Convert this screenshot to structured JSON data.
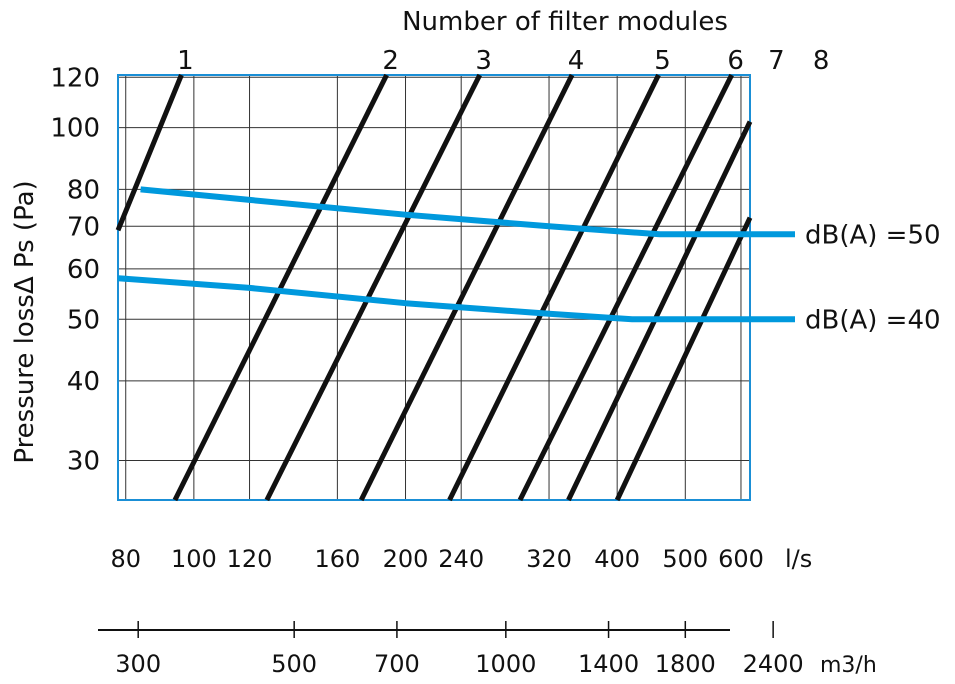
{
  "chart_data": {
    "type": "line",
    "title": "Number of filter modules",
    "ylabel": "Pressure lossΔ Ps (Pa)",
    "yscale": "log",
    "xscale": "log",
    "ylim": [
      26,
      121
    ],
    "xlim": [
      78,
      618
    ],
    "y_ticks": [
      30,
      40,
      50,
      60,
      70,
      80,
      100,
      120
    ],
    "x_ticks_ls": [
      80,
      100,
      120,
      160,
      200,
      240,
      320,
      400,
      500,
      600
    ],
    "x_unit_ls": "l/s",
    "x_ticks_m3h": [
      300,
      500,
      700,
      1000,
      1400,
      1800,
      2400
    ],
    "x_unit_m3h": "m3/h",
    "series": [
      {
        "name": "1",
        "points": [
          [
            78,
            69
          ],
          [
            96,
            121
          ]
        ]
      },
      {
        "name": "2",
        "points": [
          [
            94,
            26
          ],
          [
            188,
            121
          ]
        ]
      },
      {
        "name": "3",
        "points": [
          [
            127,
            26
          ],
          [
            255,
            121
          ]
        ]
      },
      {
        "name": "4",
        "points": [
          [
            173,
            26
          ],
          [
            345,
            121
          ]
        ]
      },
      {
        "name": "5",
        "points": [
          [
            231,
            26
          ],
          [
            458,
            121
          ]
        ]
      },
      {
        "name": "6",
        "points": [
          [
            291,
            26
          ],
          [
            582,
            121
          ]
        ]
      },
      {
        "name": "7",
        "points": [
          [
            341,
            26
          ],
          [
            665,
            121
          ]
        ]
      },
      {
        "name": "8",
        "points": [
          [
            400,
            26
          ],
          [
            770,
            121
          ]
        ]
      }
    ],
    "noise_curves": [
      {
        "name": "dB(A) =50",
        "color": "#0099dd",
        "points": [
          [
            84,
            80
          ],
          [
            120,
            77
          ],
          [
            200,
            73
          ],
          [
            320,
            70
          ],
          [
            460,
            68
          ],
          [
            618,
            68
          ]
        ]
      },
      {
        "name": "dB(A) =40",
        "color": "#0099dd",
        "points": [
          [
            78,
            58
          ],
          [
            120,
            56
          ],
          [
            200,
            53
          ],
          [
            320,
            51
          ],
          [
            420,
            50
          ],
          [
            618,
            50
          ]
        ]
      }
    ],
    "grid": true,
    "frame_color": "#1a8fd6"
  }
}
